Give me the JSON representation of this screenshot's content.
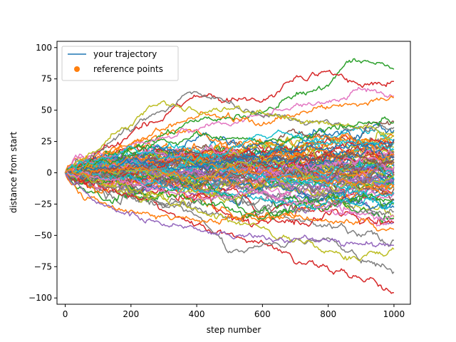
{
  "chart_data": {
    "type": "line",
    "title": "",
    "xlabel": "step number",
    "ylabel": "distance from start",
    "xlim": [
      -25,
      1050
    ],
    "ylim": [
      -105,
      105
    ],
    "x_ticks": [
      0,
      200,
      400,
      600,
      800,
      1000
    ],
    "x_tick_labels": [
      "0",
      "200",
      "400",
      "600",
      "800",
      "1000"
    ],
    "y_ticks": [
      -100,
      -75,
      -50,
      -25,
      0,
      25,
      50,
      75,
      100
    ],
    "y_tick_labels": [
      "−100",
      "−75",
      "−50",
      "−25",
      "0",
      "25",
      "50",
      "75",
      "100"
    ],
    "grid": false,
    "legend_position": "top-left",
    "legend": [
      {
        "label": "your trajectory",
        "marker": "line",
        "color": "#1f77b4"
      },
      {
        "label": "reference points",
        "marker": "circle",
        "color": "#ff7f0e"
      }
    ],
    "palette": [
      "#1f77b4",
      "#ff7f0e",
      "#2ca02c",
      "#d62728",
      "#9467bd",
      "#8c564b",
      "#e377c2",
      "#7f7f7f",
      "#bcbd22",
      "#17becf"
    ],
    "step_count": 1000,
    "series_count": 100,
    "series": [
      {
        "color": "#2ca02c",
        "x": [
          0,
          200,
          400,
          600,
          700,
          800,
          880,
          1000
        ],
        "values": [
          0,
          20,
          40,
          48,
          60,
          72,
          92,
          82
        ]
      },
      {
        "color": "#d62728",
        "x": [
          0,
          200,
          400,
          600,
          700,
          800,
          900,
          1000
        ],
        "values": [
          0,
          30,
          62,
          58,
          75,
          78,
          72,
          75
        ]
      },
      {
        "color": "#e377c2",
        "x": [
          0,
          200,
          400,
          600,
          800,
          900,
          1000
        ],
        "values": [
          0,
          18,
          35,
          45,
          55,
          68,
          62
        ]
      },
      {
        "color": "#ff7f0e",
        "x": [
          0,
          200,
          400,
          600,
          800,
          1000
        ],
        "values": [
          0,
          25,
          45,
          40,
          52,
          60
        ]
      },
      {
        "color": "#7f7f7f",
        "x": [
          0,
          200,
          380,
          500,
          600,
          800,
          1000
        ],
        "values": [
          0,
          35,
          65,
          55,
          45,
          40,
          35
        ]
      },
      {
        "color": "#bcbd22",
        "x": [
          0,
          200,
          300,
          400,
          600,
          800,
          1000
        ],
        "values": [
          0,
          40,
          58,
          50,
          45,
          38,
          30
        ]
      },
      {
        "color": "#d62728",
        "x": [
          0,
          200,
          400,
          500,
          600,
          700,
          800,
          900,
          1000
        ],
        "values": [
          0,
          -20,
          -40,
          -50,
          -55,
          -70,
          -75,
          -85,
          -95
        ]
      },
      {
        "color": "#7f7f7f",
        "x": [
          0,
          200,
          400,
          500,
          600,
          800,
          900,
          1000
        ],
        "values": [
          0,
          -15,
          -35,
          -60,
          -58,
          -55,
          -70,
          -76
        ]
      },
      {
        "color": "#bcbd22",
        "x": [
          0,
          200,
          400,
          600,
          700,
          800,
          900,
          1000
        ],
        "values": [
          0,
          -12,
          -30,
          -45,
          -55,
          -65,
          -70,
          -62
        ]
      },
      {
        "color": "#ff7f0e",
        "x": [
          0,
          30,
          60,
          200,
          400,
          600,
          800,
          1000
        ],
        "values": [
          0,
          -10,
          -20,
          -32,
          -40,
          -35,
          -38,
          -45
        ]
      },
      {
        "color": "#9467bd",
        "x": [
          0,
          100,
          200,
          300,
          400,
          600,
          800,
          1000
        ],
        "values": [
          0,
          -25,
          -35,
          -40,
          -45,
          -50,
          -55,
          -58
        ]
      },
      {
        "color": "#1f77b4",
        "x": [
          0,
          200,
          400,
          600,
          800,
          1000
        ],
        "values": [
          0,
          10,
          5,
          15,
          20,
          25
        ]
      },
      {
        "color": "#17becf",
        "x": [
          0,
          200,
          400,
          600,
          800,
          1000
        ],
        "values": [
          0,
          -5,
          -15,
          -20,
          -25,
          -18
        ]
      },
      {
        "color": "#8c564b",
        "x": [
          0,
          200,
          400,
          600,
          800,
          1000
        ],
        "values": [
          0,
          5,
          12,
          8,
          15,
          10
        ]
      },
      {
        "color": "#2ca02c",
        "x": [
          0,
          200,
          400,
          600,
          800,
          1000
        ],
        "values": [
          0,
          15,
          30,
          25,
          35,
          40
        ]
      },
      {
        "color": "#e377c2",
        "x": [
          0,
          200,
          400,
          600,
          800,
          1000
        ],
        "values": [
          0,
          -10,
          -20,
          -15,
          -30,
          -35
        ]
      },
      {
        "color": "#17becf",
        "x": [
          0,
          200,
          400,
          600,
          800,
          1000
        ],
        "values": [
          0,
          20,
          10,
          30,
          25,
          20
        ]
      },
      {
        "color": "#ff7f0e",
        "x": [
          0,
          200,
          400,
          600,
          800,
          1000
        ],
        "values": [
          0,
          2,
          -5,
          0,
          -8,
          -12
        ]
      }
    ]
  }
}
